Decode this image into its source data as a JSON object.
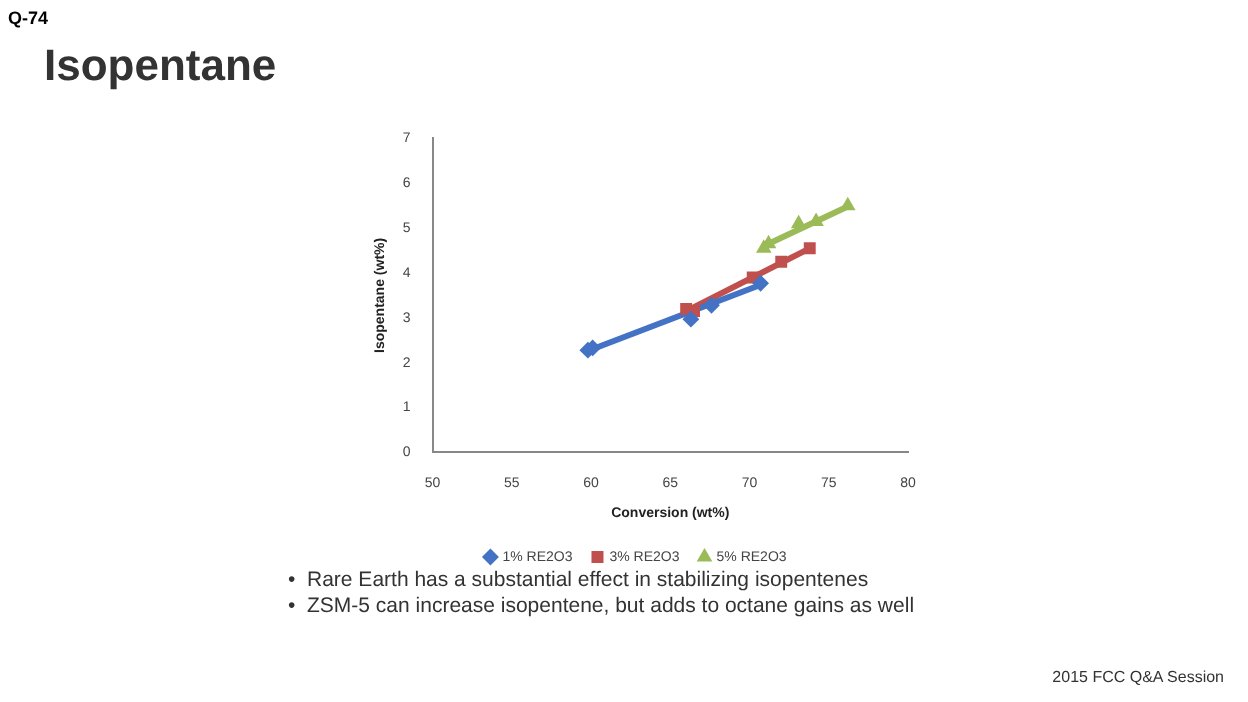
{
  "chart_data": {
    "type": "scatter",
    "title": "Isopentane",
    "xlabel": "Conversion (wt%)",
    "ylabel": "Isopentane (wt%)",
    "xlim": [
      50,
      80
    ],
    "xticks": [
      50,
      55,
      60,
      65,
      70,
      75,
      80
    ],
    "ylim": [
      0,
      7
    ],
    "yticks": [
      0,
      1,
      2,
      3,
      4,
      5,
      6,
      7
    ],
    "grid": false,
    "legend": "bottom",
    "series": [
      {
        "name": "1% RE2O3",
        "color": "#4472c4",
        "marker": "diamond",
        "x": [
          59.8,
          60.1,
          66.3,
          67.6,
          70.7
        ],
        "values": [
          2.28,
          2.33,
          2.97,
          3.28,
          3.77
        ]
      },
      {
        "name": "3% RE2O3",
        "color": "#c0504d",
        "marker": "square",
        "x": [
          66.0,
          66.5,
          70.2,
          72.0,
          73.8
        ],
        "values": [
          3.2,
          3.15,
          3.9,
          4.25,
          4.55
        ]
      },
      {
        "name": "5% RE2O3",
        "color": "#9bbb59",
        "marker": "triangle",
        "x": [
          70.9,
          71.2,
          73.1,
          74.2,
          76.2
        ],
        "values": [
          4.55,
          4.65,
          5.1,
          5.15,
          5.5
        ]
      },
      {
        "type": "line",
        "color": "#4472c4",
        "marker": "none",
        "x": [
          59.7,
          70.8
        ],
        "values": [
          2.25,
          3.75
        ]
      },
      {
        "type": "line",
        "color": "#c0504d",
        "marker": "none",
        "x": [
          66.0,
          73.8
        ],
        "values": [
          3.15,
          4.55
        ]
      },
      {
        "type": "line",
        "color": "#9bbb59",
        "marker": "none",
        "x": [
          70.9,
          76.2
        ],
        "values": [
          4.6,
          5.48
        ]
      }
    ],
    "annotations": [
      "Q-74",
      "•  Rare Earth has a substantial effect in stabilizing isopentenes",
      "•  ZSM-5 can increase isopentene, but adds to octane gains as well",
      "2015 FCC Q&A Session"
    ]
  }
}
